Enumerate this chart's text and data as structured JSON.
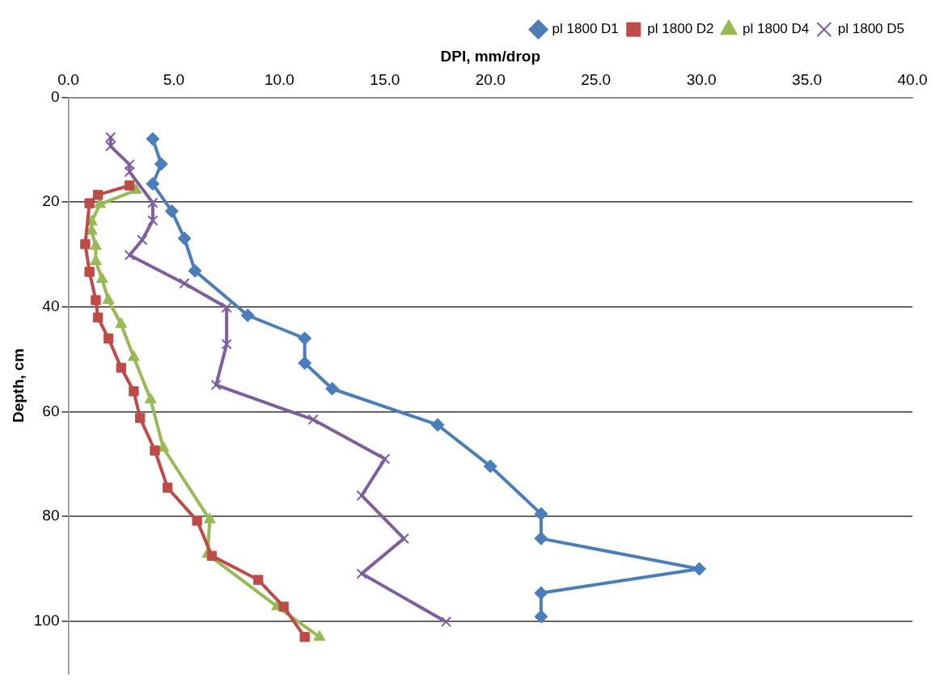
{
  "chart_data": {
    "type": "line",
    "xlabel": "DPI, mm/drop",
    "ylabel": "Depth, cm",
    "xlim": [
      0,
      40
    ],
    "xticks": [
      {
        "value": 0,
        "label": "0.0"
      },
      {
        "value": 5,
        "label": "5.0"
      },
      {
        "value": 10,
        "label": "10.0"
      },
      {
        "value": 15,
        "label": "15.0"
      },
      {
        "value": 20,
        "label": "20.0"
      },
      {
        "value": 25,
        "label": "25.0"
      },
      {
        "value": 30,
        "label": "30.0"
      },
      {
        "value": 35,
        "label": "35.0"
      },
      {
        "value": 40,
        "label": "40.0"
      }
    ],
    "ylim": [
      110,
      0
    ],
    "yticks": [
      0,
      20,
      40,
      60,
      80,
      100
    ],
    "grid": "y",
    "legend": "top right",
    "line_style": "solid",
    "series": [
      {
        "name": "pl 1800 D1",
        "color": "#4a7ebb",
        "marker": "diamond",
        "x": [
          4.0,
          4.4,
          4.0,
          4.9,
          5.5,
          6.0,
          8.5,
          11.2,
          11.2,
          12.5,
          17.5,
          20.0,
          22.4,
          22.4,
          29.9,
          22.4,
          22.4
        ],
        "values": [
          7.9,
          12.7,
          16.5,
          21.7,
          26.9,
          33.1,
          41.6,
          46.0,
          50.7,
          55.6,
          62.5,
          70.4,
          79.5,
          84.2,
          90.0,
          94.6,
          99.1
        ]
      },
      {
        "name": "pl 1800 D2",
        "color": "#be4b48",
        "marker": "square",
        "x": [
          2.9,
          1.4,
          1.0,
          0.8,
          1.0,
          1.3,
          1.4,
          1.9,
          2.5,
          3.1,
          3.4,
          4.1,
          4.7,
          6.1,
          6.8,
          9.0,
          10.2,
          11.2
        ],
        "values": [
          16.8,
          18.6,
          20.2,
          28.0,
          33.3,
          38.7,
          42.0,
          46.0,
          51.6,
          56.1,
          61.2,
          67.4,
          74.5,
          80.8,
          87.5,
          92.1,
          97.2,
          103.0
        ]
      },
      {
        "name": "pl 1800 D4",
        "color": "#98b954",
        "marker": "triangle",
        "x": [
          3.2,
          1.5,
          1.1,
          1.1,
          1.3,
          1.3,
          1.6,
          1.9,
          2.5,
          3.1,
          3.9,
          4.5,
          6.7,
          6.6,
          9.9,
          11.9
        ],
        "values": [
          17.7,
          20.4,
          23.7,
          25.5,
          28.4,
          31.3,
          34.7,
          38.7,
          43.3,
          49.6,
          57.7,
          66.9,
          80.6,
          87.2,
          97.2,
          103.0
        ]
      },
      {
        "name": "pl 1800 D5",
        "color": "#7d5fa0",
        "marker": "cross",
        "x": [
          2.0,
          2.0,
          2.9,
          2.9,
          4.0,
          4.0,
          3.5,
          2.9,
          5.5,
          7.5,
          7.5,
          7.0,
          11.6,
          15.0,
          13.9,
          15.9,
          13.9,
          17.9
        ],
        "values": [
          7.6,
          9.3,
          12.8,
          14.2,
          20.1,
          23.5,
          27.2,
          30.1,
          35.5,
          40.1,
          47.1,
          54.9,
          61.5,
          69.0,
          76.0,
          84.2,
          90.9,
          100.1
        ]
      }
    ]
  }
}
